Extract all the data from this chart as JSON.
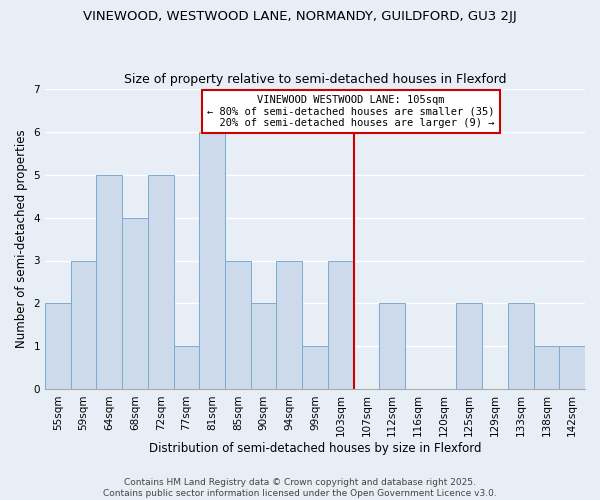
{
  "title": "VINEWOOD, WESTWOOD LANE, NORMANDY, GUILDFORD, GU3 2JJ",
  "subtitle": "Size of property relative to semi-detached houses in Flexford",
  "xlabel": "Distribution of semi-detached houses by size in Flexford",
  "ylabel": "Number of semi-detached properties",
  "bin_labels": [
    "55sqm",
    "59sqm",
    "64sqm",
    "68sqm",
    "72sqm",
    "77sqm",
    "81sqm",
    "85sqm",
    "90sqm",
    "94sqm",
    "99sqm",
    "103sqm",
    "107sqm",
    "112sqm",
    "116sqm",
    "120sqm",
    "125sqm",
    "129sqm",
    "133sqm",
    "138sqm",
    "142sqm"
  ],
  "bar_values": [
    2,
    3,
    5,
    4,
    5,
    1,
    6,
    3,
    2,
    3,
    1,
    3,
    0,
    2,
    0,
    0,
    2,
    0,
    2,
    1,
    1
  ],
  "bar_color": "#ccdaeb",
  "bar_edgecolor": "#7aaad0",
  "subject_line_label": "VINEWOOD WESTWOOD LANE: 105sqm",
  "pct_smaller": 80,
  "count_smaller": 35,
  "pct_larger": 20,
  "count_larger": 9,
  "annotation_box_color": "#ffffff",
  "annotation_box_edgecolor": "#cc0000",
  "vline_color": "#cc0000",
  "subject_bar_index": 11,
  "ylim": [
    0,
    7
  ],
  "background_color": "#e8eef5",
  "grid_color": "#ffffff",
  "footer_line1": "Contains HM Land Registry data © Crown copyright and database right 2025.",
  "footer_line2": "Contains public sector information licensed under the Open Government Licence v3.0.",
  "title_fontsize": 9.5,
  "subtitle_fontsize": 9,
  "axis_label_fontsize": 8.5,
  "tick_fontsize": 7.5,
  "annot_fontsize": 7.5,
  "footer_fontsize": 6.5
}
